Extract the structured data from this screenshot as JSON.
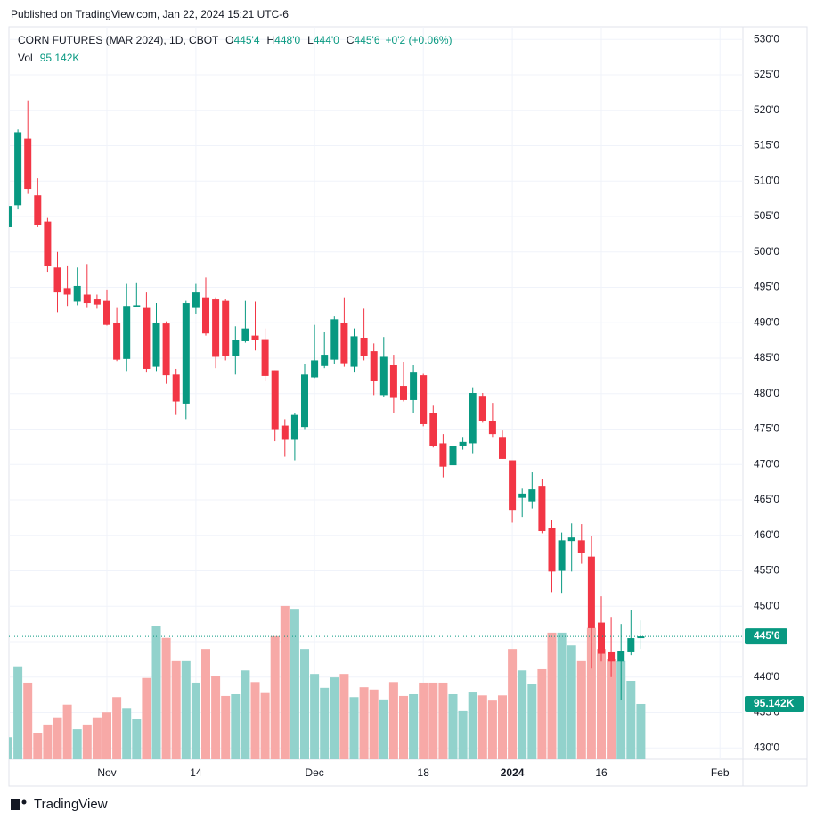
{
  "published": "Published on TradingView.com, Jan 22, 2024 15:21 UTC-6",
  "footer": "TradingView",
  "chart_data": {
    "type": "candlestick",
    "title": "CORN FUTURES (MAR 2024), 1D, CBOT",
    "header_fields": [
      {
        "key": "O",
        "text": "445'4"
      },
      {
        "key": "H",
        "text": "448'0"
      },
      {
        "key": "L",
        "text": "444'0"
      },
      {
        "key": "C",
        "text": "445'6"
      }
    ],
    "change_text": "+0'2 (+0.06%)",
    "volume_name": "Vol",
    "last_volume_label": "95.142K",
    "last_price_label": "445'6",
    "categories": [
      null,
      null,
      null,
      null,
      null,
      null,
      null,
      null,
      null,
      null,
      "Nov",
      null,
      null,
      null,
      null,
      null,
      null,
      null,
      null,
      "14",
      null,
      null,
      null,
      null,
      null,
      null,
      null,
      null,
      null,
      null,
      null,
      "Dec",
      null,
      null,
      null,
      null,
      null,
      null,
      null,
      null,
      null,
      null,
      "18",
      null,
      null,
      null,
      null,
      null,
      null,
      null,
      null,
      "2024",
      null,
      null,
      null,
      null,
      null,
      null,
      null,
      null,
      "16",
      null,
      null,
      null,
      null,
      null,
      null,
      null,
      null,
      null,
      null,
      null,
      "Feb"
    ],
    "open": [
      503.5,
      506.6,
      516,
      508,
      504.3,
      497.8,
      494.9,
      493,
      494,
      493.3,
      493.1,
      490,
      484.9,
      492.2,
      492.1,
      483.8,
      489.9,
      482.7,
      478.6,
      492.1,
      493.6,
      493.3,
      493.1,
      485.3,
      487.4,
      488.2,
      487.7,
      483.3,
      475.5,
      473.5,
      475.3,
      482.3,
      483.9,
      484.8,
      490,
      483.8,
      487.9,
      486,
      479.8,
      484,
      481.1,
      479.1,
      482.6,
      477.3,
      473,
      469.9,
      472.6,
      473,
      479.7,
      476.2,
      473.9,
      470.6,
      465.3,
      464.8,
      467,
      461.1,
      455,
      459.2,
      459.3,
      457,
      447.7,
      443.5,
      442.2,
      443.5,
      445.5,
      null,
      null,
      null,
      null,
      null,
      null,
      null,
      null
    ],
    "high": [
      507,
      517.3,
      521.4,
      510.4,
      504.8,
      500,
      498.1,
      497.8,
      498.3,
      494,
      494.7,
      492.1,
      495.5,
      495.6,
      494.3,
      492.8,
      490.2,
      483.5,
      493.1,
      495.5,
      496.4,
      493.6,
      493.4,
      489.5,
      493.1,
      493,
      489.2,
      483.3,
      476.4,
      477.3,
      484.2,
      489.7,
      488.7,
      490.9,
      493.6,
      489.2,
      492,
      487.1,
      488,
      485.5,
      484.5,
      484,
      482.8,
      478.3,
      474.3,
      473,
      473.9,
      480.9,
      480.1,
      478.7,
      474.8,
      470.6,
      466.6,
      468.9,
      467.9,
      462.2,
      460.4,
      461.7,
      461.6,
      459.9,
      451.4,
      448.5,
      447.5,
      449.5,
      448,
      null,
      null,
      null,
      null,
      null,
      null,
      null,
      null
    ],
    "low": [
      503,
      506,
      508.2,
      503.5,
      497.2,
      491.5,
      492.4,
      492.5,
      492.1,
      492,
      489.6,
      484.6,
      483.2,
      492.2,
      483.1,
      483.2,
      481.4,
      477,
      476.4,
      491.3,
      488.2,
      483.6,
      484.7,
      482.7,
      487.2,
      486.1,
      481.8,
      473.3,
      471.1,
      470.6,
      475,
      482.2,
      483.6,
      484.2,
      483.8,
      483.1,
      484.7,
      479.8,
      479.6,
      477.3,
      478.9,
      477.3,
      475.4,
      472.4,
      468.2,
      469.2,
      472.1,
      471.6,
      475.9,
      473.9,
      470.8,
      461.8,
      462.6,
      463.8,
      460.3,
      452,
      451.9,
      454.9,
      456,
      441.2,
      442.2,
      440,
      436.8,
      443.1,
      444,
      null,
      null,
      null,
      null,
      null,
      null,
      null,
      null
    ],
    "close": [
      506.5,
      516.9,
      508.9,
      503.8,
      498,
      494.3,
      494,
      495.2,
      492.8,
      492.6,
      489.7,
      484.8,
      492.4,
      492.5,
      483.5,
      490,
      482.6,
      478.9,
      492.8,
      494.3,
      488.5,
      485.2,
      485.3,
      487.6,
      489.2,
      487.6,
      482.5,
      475,
      473.5,
      477,
      482.7,
      484.7,
      485.5,
      490.5,
      484.3,
      488.1,
      485.3,
      481.8,
      485.2,
      479.4,
      479.1,
      483.1,
      475.7,
      472.6,
      469.7,
      472.6,
      473.2,
      480.1,
      476.2,
      474.3,
      470.8,
      463.6,
      465.9,
      466.5,
      460.6,
      454.9,
      459.3,
      459.7,
      457.5,
      446.9,
      443.3,
      442.2,
      443.7,
      445.5,
      445.75,
      null,
      null,
      null,
      null,
      null,
      null,
      null,
      null
    ],
    "volume": [
      38000,
      160000,
      132000,
      46000,
      60000,
      71000,
      94000,
      52000,
      60000,
      71000,
      81000,
      107000,
      87000,
      69000,
      140000,
      230000,
      209000,
      169000,
      169000,
      132000,
      190000,
      143000,
      109000,
      112000,
      153000,
      133000,
      114000,
      212000,
      264000,
      259000,
      190000,
      147000,
      123000,
      141000,
      147000,
      107000,
      124000,
      120000,
      103000,
      133000,
      109000,
      112000,
      132000,
      132000,
      132000,
      112000,
      83000,
      115000,
      110000,
      101000,
      110000,
      190000,
      153000,
      130000,
      155000,
      218000,
      218000,
      196000,
      169000,
      226000,
      190000,
      172000,
      169000,
      135000,
      95142,
      null,
      null,
      null,
      null,
      null,
      null,
      null,
      null
    ],
    "ylim": [
      428.4,
      531.8
    ],
    "yticks": [
      {
        "value": 430,
        "label": "430'0"
      },
      {
        "value": 435,
        "label": "435'0"
      },
      {
        "value": 440,
        "label": "440'0"
      },
      {
        "value": 445,
        "label": "445'0"
      },
      {
        "value": 450,
        "label": "450'0"
      },
      {
        "value": 455,
        "label": "455'0"
      },
      {
        "value": 460,
        "label": "460'0"
      },
      {
        "value": 465,
        "label": "465'0"
      },
      {
        "value": 470,
        "label": "470'0"
      },
      {
        "value": 475,
        "label": "475'0"
      },
      {
        "value": 480,
        "label": "480'0"
      },
      {
        "value": 485,
        "label": "485'0"
      },
      {
        "value": 490,
        "label": "490'0"
      },
      {
        "value": 495,
        "label": "495'0"
      },
      {
        "value": 500,
        "label": "500'0"
      },
      {
        "value": 505,
        "label": "505'0"
      },
      {
        "value": 510,
        "label": "510'0"
      },
      {
        "value": 515,
        "label": "515'0"
      },
      {
        "value": 520,
        "label": "520'0"
      },
      {
        "value": 525,
        "label": "525'0"
      },
      {
        "value": 530,
        "label": "530'0"
      }
    ],
    "y2lim": [
      0,
      1261000
    ],
    "grid": true,
    "up_color": "#089981",
    "down_color": "#f23645",
    "volume_up_color": "#92d2cc",
    "volume_down_color": "#f7a9a7"
  }
}
